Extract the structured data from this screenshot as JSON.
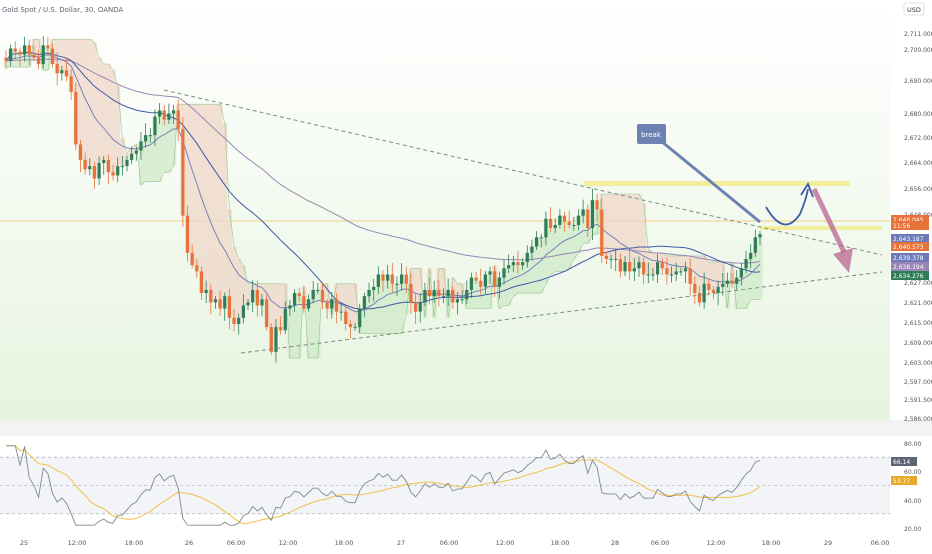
{
  "header": {
    "symbol_title": "Gold Spot / U.S. Dollar, 30, OANDA",
    "currency_button": "USD"
  },
  "annotation": {
    "text": "break"
  },
  "colors": {
    "background_top": "#ffffff",
    "background_bottom": "#e7f4e0",
    "candle_up": "#2e7d58",
    "candle_down": "#e8733a",
    "ma_fast": "#6b79b8",
    "ma_slow": "#9a86b4",
    "ma_trend": "#3d5aa8",
    "cloud_bear": "#efd7c8",
    "cloud_bull": "#cfe9c8",
    "trend_line": "#7a8f7a",
    "resistance_zone": "#f1ef9e",
    "current_price_line": "#f0c060",
    "break_label_bg": "#6d82b3",
    "arrow_up": "#3d5aa8",
    "arrow_down": "#b45a8c",
    "rsi_line": "#7f8a8c",
    "rsi_signal": "#f0c14a"
  },
  "chart_data": [
    {
      "type": "candlestick",
      "title": "Gold Spot / U.S. Dollar, 30, OANDA",
      "ylim": [
        2583,
        2712
      ],
      "y_ticks": [
        "2,711.000",
        "2,700.000",
        "2,690.000",
        "2,680.000",
        "2,672.000",
        "2,664.000",
        "2,656.000",
        "2,648.000",
        "2,640.573",
        "2,634.276",
        "2,627.000",
        "2,621.000",
        "2,615.000",
        "2,609.000",
        "2,603.000",
        "2,597.000",
        "2,591.500",
        "2,586.000"
      ],
      "price_labels": [
        {
          "text": "2,646.045",
          "color": "#e8733a"
        },
        {
          "text": "11:56",
          "color": "#e8733a"
        },
        {
          "text": "2,643.187",
          "color": "#6b79b8"
        },
        {
          "text": "2,640.573",
          "color": "#e8733a"
        },
        {
          "text": "2,639.378",
          "color": "#6b79b8"
        },
        {
          "text": "2,638.194",
          "color": "#9a86b4"
        },
        {
          "text": "2,634.276",
          "color": "#2e7d58"
        }
      ],
      "x_ticks": [
        "25",
        "12:00",
        "18:00",
        "26",
        "06:00",
        "12:00",
        "18:00",
        "27",
        "06:00",
        "12:00",
        "18:00",
        "28",
        "06:00",
        "12:00",
        "18:00",
        "29",
        "06:00"
      ],
      "candles_close": [
        2702,
        2706,
        2705,
        2704,
        2707,
        2704,
        2703,
        2701,
        2707,
        2706,
        2701,
        2698,
        2699,
        2697,
        2692,
        2675,
        2670,
        2667,
        2668,
        2664,
        2669,
        2670,
        2666,
        2665,
        2668,
        2668,
        2670,
        2672,
        2673,
        2676,
        2678,
        2678,
        2684,
        2686,
        2683,
        2685,
        2686,
        2680,
        2652,
        2640,
        2636,
        2634,
        2627,
        2628,
        2624,
        2625,
        2622,
        2626,
        2619,
        2617,
        2619,
        2623,
        2624,
        2628,
        2623,
        2625,
        2616,
        2608,
        2616,
        2615,
        2622,
        2623,
        2627,
        2626,
        2622,
        2625,
        2628,
        2628,
        2624,
        2622,
        2625,
        2621,
        2621,
        2617,
        2616,
        2616,
        2622,
        2626,
        2628,
        2629,
        2633,
        2631,
        2633,
        2630,
        2630,
        2633,
        2630,
        2624,
        2621,
        2624,
        2628,
        2626,
        2628,
        2626,
        2626,
        2628,
        2624,
        2625,
        2625,
        2628,
        2632,
        2631,
        2629,
        2633,
        2634,
        2629,
        2632,
        2635,
        2636,
        2637,
        2636,
        2637,
        2640,
        2642,
        2645,
        2645,
        2651,
        2648,
        2649,
        2652,
        2650,
        2649,
        2649,
        2652,
        2654,
        2648,
        2657,
        2654,
        2639,
        2638,
        2638,
        2638,
        2634,
        2637,
        2634,
        2635,
        2637,
        2633,
        2633,
        2633,
        2637,
        2635,
        2633,
        2633,
        2634,
        2634,
        2635,
        2630,
        2627,
        2624,
        2630,
        2628,
        2627,
        2629,
        2630,
        2631,
        2630,
        2632,
        2635,
        2638,
        2640,
        2645,
        2646
      ]
    },
    {
      "type": "line",
      "title": "RSI",
      "ylim": [
        20,
        80
      ],
      "y_ticks": [
        "80.00",
        "60.00",
        "40.00",
        "20.00"
      ],
      "levels": [
        70,
        50,
        30
      ],
      "value_labels": [
        {
          "text": "66.14",
          "color": "#5c6475"
        },
        {
          "text": "53.77",
          "color": "#e8a92a"
        }
      ]
    }
  ]
}
